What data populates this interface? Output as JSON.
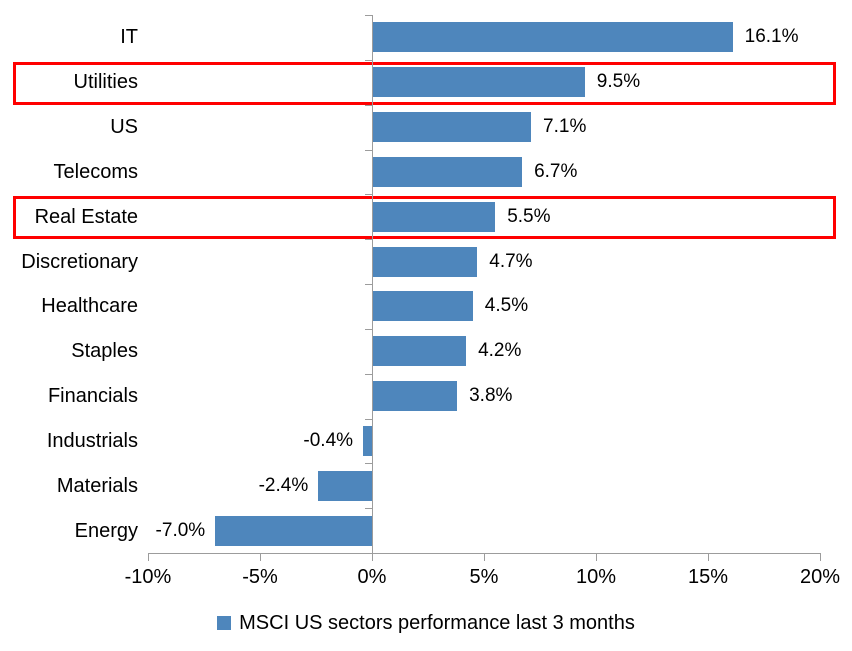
{
  "chart_data": {
    "type": "bar",
    "orientation": "horizontal",
    "title": "",
    "series_name": "MSCI US sectors performance last 3 months",
    "categories": [
      "IT",
      "Utilities",
      "US",
      "Telecoms",
      "Real Estate",
      "Discretionary",
      "Healthcare",
      "Staples",
      "Financials",
      "Industrials",
      "Materials",
      "Energy"
    ],
    "values": [
      16.1,
      9.5,
      7.1,
      6.7,
      5.5,
      4.7,
      4.5,
      4.2,
      3.8,
      -0.4,
      -2.4,
      -7.0
    ],
    "data_labels": [
      "16.1%",
      "9.5%",
      "7.1%",
      "6.7%",
      "5.5%",
      "4.7%",
      "4.5%",
      "4.2%",
      "3.8%",
      "-0.4%",
      "-2.4%",
      "-7.0%"
    ],
    "xlim": [
      -10,
      20
    ],
    "x_tick_values": [
      -10,
      -5,
      0,
      5,
      10,
      15,
      20
    ],
    "x_tick_labels": [
      "-10%",
      "-5%",
      "0%",
      "5%",
      "10%",
      "15%",
      "20%"
    ],
    "grid": false,
    "legend_position": "bottom",
    "bar_color": "#4E86BC",
    "axis_color": "#9C9C9C",
    "text_color": "#000000",
    "highlight": {
      "categories": [
        "Utilities",
        "Real Estate"
      ],
      "color": "#FF0000"
    }
  }
}
